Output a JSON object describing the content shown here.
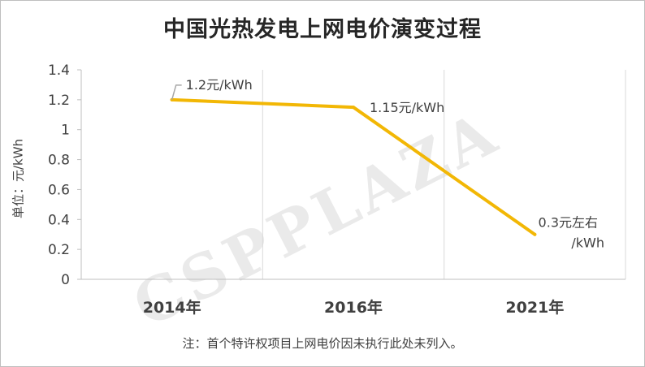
{
  "chart_data": {
    "type": "line",
    "title": "中国光热发电上网电价演变过程",
    "ylabel": "单位：元/kWh",
    "xlabel": "",
    "ylim": [
      0,
      1.4
    ],
    "yticks": [
      "0",
      "0.2",
      "0.4",
      "0.6",
      "0.8",
      "1",
      "1.2",
      "1.4"
    ],
    "categories": [
      "2014年",
      "2016年",
      "2021年"
    ],
    "series": [
      {
        "values": [
          1.2,
          1.15,
          0.3
        ],
        "color": "#f2b705"
      }
    ],
    "data_labels": [
      [
        "1.2元/kWh"
      ],
      [
        "1.15元/kWh"
      ],
      [
        "0.3元左右",
        "/kWh"
      ]
    ],
    "grid": "vertical-only",
    "legend": "none"
  },
  "footnote": "注：首个特许权项目上网电价因未执行此处未列入。",
  "watermark": "CSPPLAZA",
  "colors": {
    "line": "#f2b705",
    "axis": "#bfbfbf",
    "text": "#404040"
  }
}
